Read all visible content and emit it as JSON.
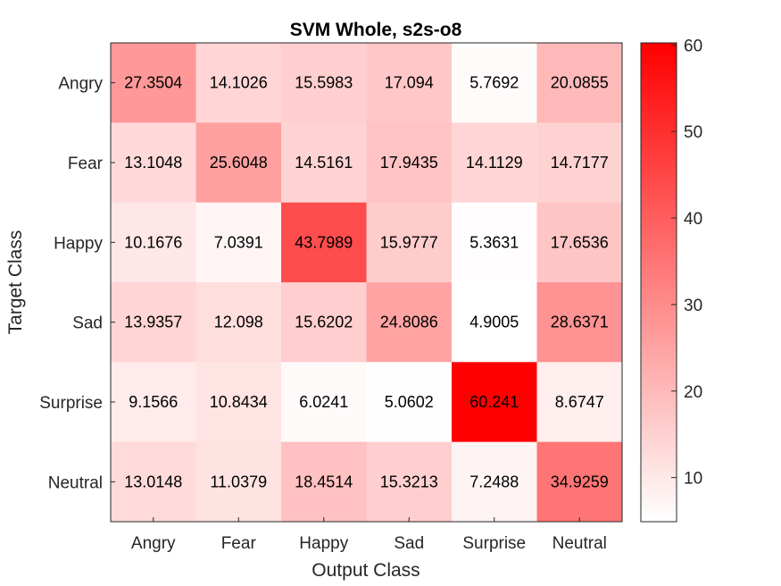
{
  "chart_data": {
    "type": "heatmap",
    "title": "SVM Whole, s2s-o8",
    "xlabel": "Output Class",
    "ylabel": "Target Class",
    "x_categories": [
      "Angry",
      "Fear",
      "Happy",
      "Sad",
      "Surprise",
      "Neutral"
    ],
    "y_categories": [
      "Angry",
      "Fear",
      "Happy",
      "Sad",
      "Surprise",
      "Neutral"
    ],
    "values": [
      [
        "27.3504",
        "14.1026",
        "15.5983",
        "17.094",
        "5.7692",
        "20.0855"
      ],
      [
        "13.1048",
        "25.6048",
        "14.5161",
        "17.9435",
        "14.1129",
        "14.7177"
      ],
      [
        "10.1676",
        "7.0391",
        "43.7989",
        "15.9777",
        "5.3631",
        "17.6536"
      ],
      [
        "13.9357",
        "12.098",
        "15.6202",
        "24.8086",
        "4.9005",
        "28.6371"
      ],
      [
        "9.1566",
        "10.8434",
        "6.0241",
        "5.0602",
        "60.241",
        "8.6747"
      ],
      [
        "13.0148",
        "11.0379",
        "18.4514",
        "15.3213",
        "7.2488",
        "34.9259"
      ]
    ],
    "colorbar": {
      "min": 4.9005,
      "max": 60.241,
      "ticks": [
        "10",
        "20",
        "30",
        "40",
        "50",
        "60"
      ],
      "colormap": "white-to-red",
      "low_color": "#ffffff",
      "high_color": "#ff0000"
    },
    "grid": false
  }
}
